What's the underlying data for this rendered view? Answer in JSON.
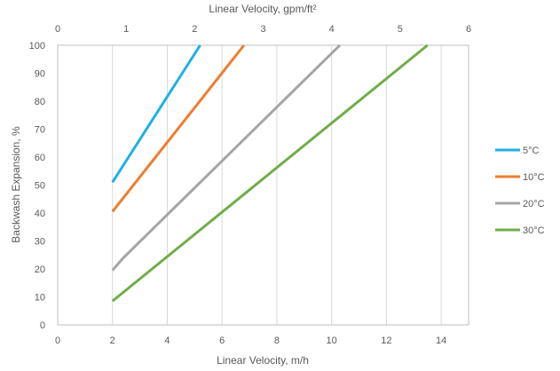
{
  "chart_data": {
    "type": "line",
    "title": "",
    "xlabel": "Linear Velocity, m/h",
    "x2label": "Linear Velocity, gpm/ft²",
    "ylabel": "Backwash Expansion, %",
    "xlim": [
      0,
      15
    ],
    "x2lim": [
      0,
      6
    ],
    "ylim": [
      0,
      100
    ],
    "xticks": [
      0,
      2,
      4,
      6,
      8,
      10,
      12,
      14
    ],
    "x2ticks": [
      0,
      1,
      2,
      3,
      4,
      5,
      6
    ],
    "yticks": [
      0,
      10,
      20,
      30,
      40,
      50,
      60,
      70,
      80,
      90,
      100
    ],
    "grid": "vertical",
    "legend_position": "right",
    "series": [
      {
        "name": "5°C",
        "color": "#1fb0e6",
        "x": [
          2,
          5.2
        ],
        "y": [
          51,
          100
        ]
      },
      {
        "name": "10°C",
        "color": "#ed7d31",
        "x": [
          2,
          6.8
        ],
        "y": [
          40.5,
          100
        ]
      },
      {
        "name": "20°C",
        "color": "#a5a5a5",
        "x": [
          2,
          2.4,
          10.3
        ],
        "y": [
          19.5,
          24,
          100
        ]
      },
      {
        "name": "30°C",
        "color": "#70ad47",
        "x": [
          2,
          13.5
        ],
        "y": [
          8.5,
          100
        ]
      }
    ]
  }
}
